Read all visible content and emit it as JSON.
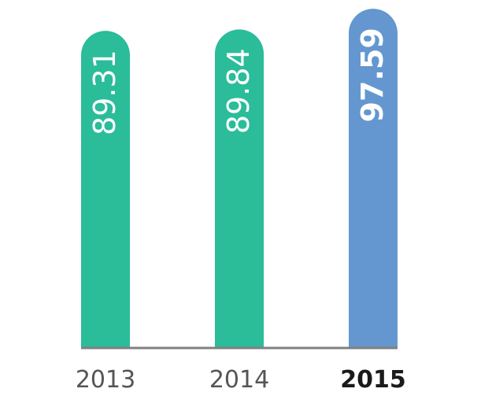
{
  "chart_data": {
    "type": "bar",
    "categories": [
      "2013",
      "2014",
      "2015"
    ],
    "values": [
      89.31,
      89.84,
      97.59
    ],
    "value_labels": [
      "89.31",
      "89.84",
      "97.59"
    ],
    "highlight_category": "2015",
    "colors": {
      "default": "#2bbc9a",
      "highlight": "#6497cf",
      "axis": "#808080",
      "label": "#555555",
      "highlight_label": "#1a1a1a"
    },
    "title": "",
    "xlabel": "",
    "ylabel": "",
    "grid": false
  }
}
